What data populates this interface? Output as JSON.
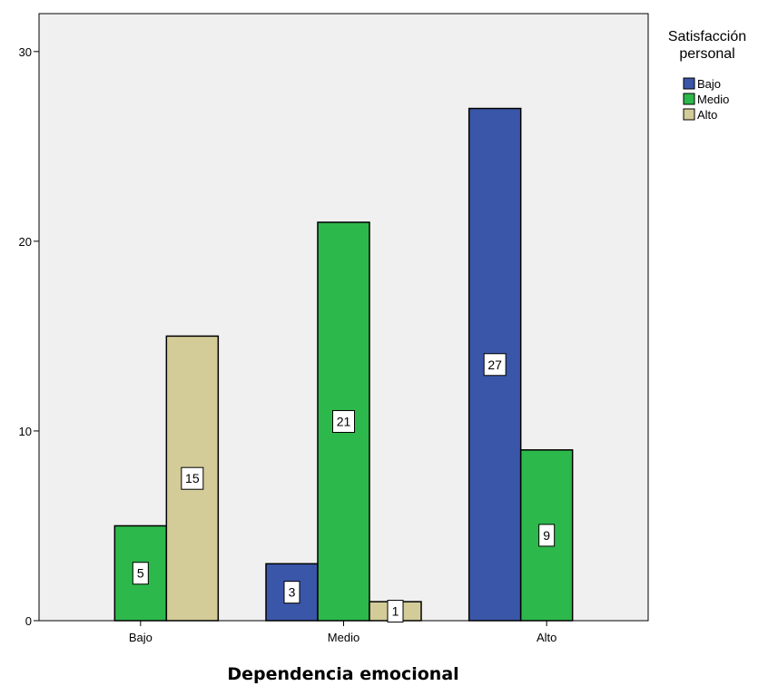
{
  "chart_data": {
    "type": "bar",
    "title": "",
    "xlabel": "Dependencia emocional",
    "ylabel": "",
    "categories": [
      "Bajo",
      "Medio",
      "Alto"
    ],
    "ylim": [
      0,
      32
    ],
    "yticks": [
      0,
      10,
      20,
      30
    ],
    "grid": false,
    "legend": {
      "title_line1": "Satisfacción",
      "title_line2": "personal",
      "placement": "right"
    },
    "series": [
      {
        "name": "Bajo",
        "color": "#3a56a8",
        "values": [
          null,
          3,
          27
        ]
      },
      {
        "name": "Medio",
        "color": "#2db84b",
        "values": [
          5,
          21,
          9
        ]
      },
      {
        "name": "Alto",
        "color": "#d4cc98",
        "values": [
          15,
          1,
          null
        ]
      }
    ]
  },
  "colors": {
    "plot_background": "#f0f0f0",
    "frame": "#000000"
  }
}
